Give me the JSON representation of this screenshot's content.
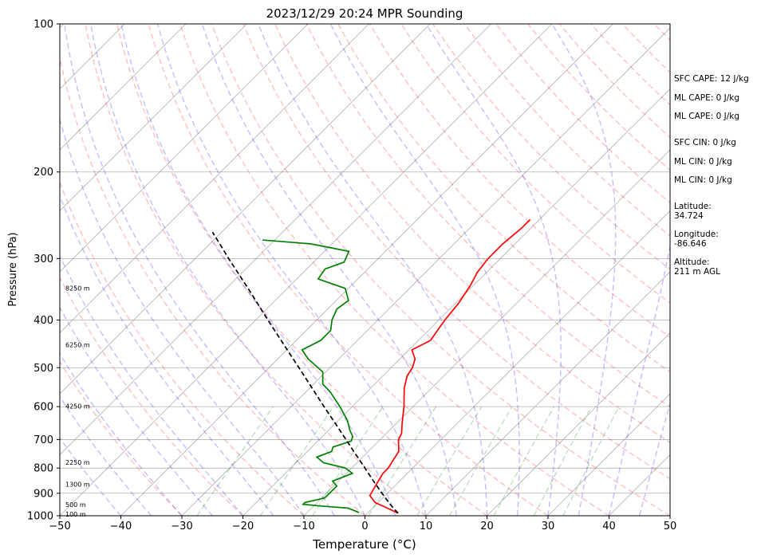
{
  "chart_data": {
    "type": "line",
    "title": "2023/12/29 20:24 MPR Sounding",
    "xlabel": "Temperature (°C)",
    "ylabel": "Pressure (hPa)",
    "xlim": [
      -50,
      50
    ],
    "ylim": [
      1000,
      100
    ],
    "y_scale": "log",
    "skew": "skew-T (45°)",
    "grid": true,
    "x_ticks": [
      "−50",
      "−40",
      "−30",
      "−20",
      "−10",
      "0",
      "10",
      "20",
      "30",
      "40",
      "50"
    ],
    "x_tick_values": [
      -50,
      -40,
      -30,
      -20,
      -10,
      0,
      10,
      20,
      30,
      40,
      50
    ],
    "y_ticks": [
      "1000",
      "900",
      "800",
      "700",
      "600",
      "500",
      "400",
      "300",
      "200",
      "100"
    ],
    "y_tick_values": [
      1000,
      900,
      800,
      700,
      600,
      500,
      400,
      300,
      200,
      100
    ],
    "series": [
      {
        "name": "",
        "role": "temperature",
        "color": "#ff0000",
        "pressure": [
          988,
          970,
          940,
          910,
          880,
          850,
          820,
          800,
          770,
          740,
          700,
          680,
          650,
          600,
          550,
          520,
          500,
          480,
          460,
          440,
          420,
          400,
          370,
          340,
          320,
          300,
          280,
          260,
          250
        ],
        "values": [
          5.0,
          3.0,
          -0.5,
          -2.5,
          -3.0,
          -3.5,
          -4.0,
          -4.0,
          -4.5,
          -5.0,
          -7.0,
          -7.5,
          -9.0,
          -11.5,
          -14.5,
          -16.0,
          -16.5,
          -17.5,
          -19.5,
          -18.0,
          -18.5,
          -19.0,
          -19.5,
          -20.5,
          -21.5,
          -22.0,
          -22.0,
          -21.5,
          -21.5
        ]
      },
      {
        "name": "",
        "role": "dewpoint",
        "color": "#008000",
        "pressure": [
          985,
          965,
          955,
          948,
          940,
          920,
          900,
          870,
          850,
          835,
          820,
          800,
          780,
          760,
          740,
          725,
          715,
          705,
          690,
          670,
          640,
          600,
          560,
          540,
          510,
          480,
          460,
          440,
          420,
          400,
          380,
          365,
          345,
          330,
          315,
          305,
          290,
          280,
          275
        ],
        "values": [
          -1.5,
          -4.0,
          -9.0,
          -12.0,
          -12.0,
          -9.5,
          -9.5,
          -9.5,
          -11.0,
          -10.0,
          -9.0,
          -11.0,
          -15.5,
          -17.5,
          -16.0,
          -16.5,
          -15.5,
          -14.5,
          -15.0,
          -16.5,
          -18.5,
          -22.0,
          -26.0,
          -28.5,
          -30.5,
          -35.0,
          -37.5,
          -36.0,
          -36.0,
          -37.5,
          -38.5,
          -38.0,
          -40.5,
          -46.5,
          -47.0,
          -45.0,
          -46.0,
          -53.5,
          -62.0
        ]
      },
      {
        "name": "",
        "role": "parcel",
        "color": "#000000",
        "pressure": [
          988,
          950,
          900,
          850,
          800,
          750,
          700,
          650,
          600,
          550,
          500,
          450,
          400,
          350,
          300,
          265
        ],
        "values": [
          5.0,
          2.4,
          -0.9,
          -4.3,
          -7.8,
          -11.6,
          -15.6,
          -19.9,
          -24.6,
          -29.6,
          -35.1,
          -41.2,
          -48.0,
          -55.6,
          -64.5,
          -71.5
        ]
      }
    ],
    "height_labels": [
      "100 m",
      "500 m",
      "1300 m",
      "2250 m",
      "4250 m",
      "6250 m",
      "8250 m"
    ],
    "height_label_pressures": [
      995,
      950,
      865,
      780,
      600,
      450,
      345
    ],
    "reference_lines": {
      "dry_adiabats": "#ff0000",
      "moist_adiabats": "#0000ff",
      "mixing_ratio": "#008000",
      "isotherms": "#7f7f7f"
    },
    "annotations": [
      "SFC CAPE: 12 J/kg",
      "ML CAPE: 0 J/kg",
      "ML CAPE: 0 J/kg",
      "SFC CIN: 0 J/kg",
      "ML CIN: 0 J/kg",
      "ML CIN: 0 J/kg",
      "Latitude:",
      "34.724",
      "Longitude:",
      "-86.646",
      "Altitude:",
      "211 m AGL"
    ]
  }
}
